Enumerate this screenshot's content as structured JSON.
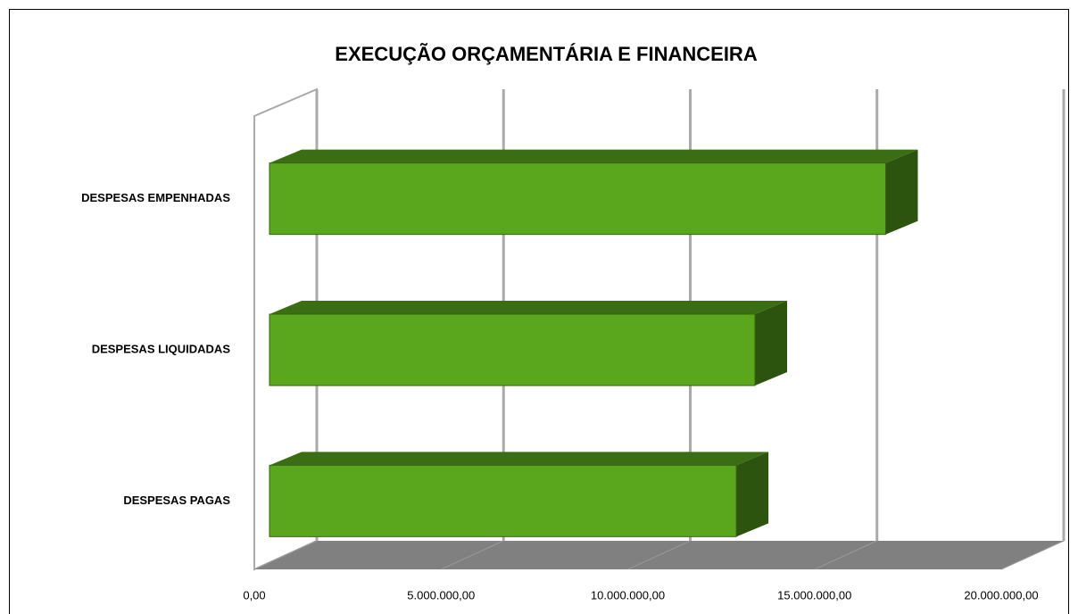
{
  "chart_data": {
    "type": "bar3d",
    "orientation": "horizontal",
    "title": "EXECUÇÃO ORÇAMENTÁRIA E FINANCEIRA",
    "categories": [
      "DESPESAS EMPENHADAS",
      "DESPESAS LIQUIDADAS",
      "DESPESAS PAGAS"
    ],
    "values": [
      16500000,
      13000000,
      12500000
    ],
    "color": "#5aa71e",
    "xlim": [
      0,
      20000000
    ],
    "xticks": [
      {
        "value": 0,
        "label": "0,00"
      },
      {
        "value": 5000000,
        "label": "5.000.000,00"
      },
      {
        "value": 10000000,
        "label": "10.000.000,00"
      },
      {
        "value": 15000000,
        "label": "15.000.000,00"
      },
      {
        "value": 20000000,
        "label": "20.000.000,00"
      }
    ],
    "grid": true
  }
}
